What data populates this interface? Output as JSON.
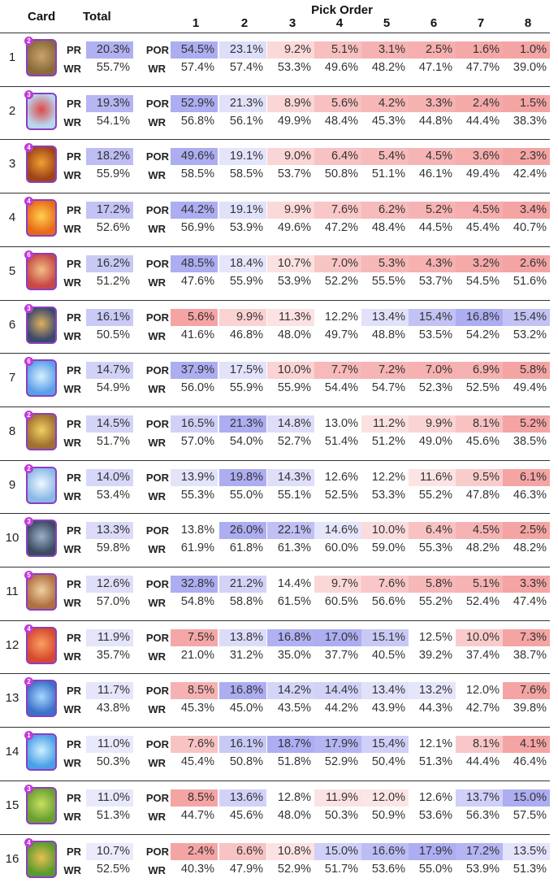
{
  "header": {
    "card": "Card",
    "total": "Total",
    "pick_order": "Pick Order",
    "columns": [
      "1",
      "2",
      "3",
      "4",
      "5",
      "6",
      "7",
      "8"
    ]
  },
  "labels": {
    "pr": "PR",
    "wr": "WR",
    "por": "POR"
  },
  "colors": {
    "high": "#7b7bea",
    "low": "#ec5a5a",
    "frame": "#8a3fc0"
  },
  "chart_data": {
    "type": "table",
    "columns": [
      "Card",
      "Total",
      "1",
      "2",
      "3",
      "4",
      "5",
      "6",
      "7",
      "8"
    ],
    "rows": [
      {
        "rank": "1",
        "icon": "battle-ram-card-icon",
        "level": "2",
        "pr": "20.3%",
        "wr": "55.7%",
        "por": [
          "54.5%",
          "23.1%",
          "9.2%",
          "5.1%",
          "3.1%",
          "2.5%",
          "1.6%",
          "1.0%"
        ],
        "por_wr": [
          "57.4%",
          "57.4%",
          "53.3%",
          "49.6%",
          "48.2%",
          "47.1%",
          "47.7%",
          "39.0%"
        ]
      },
      {
        "rank": "2",
        "icon": "arrows-card-icon",
        "level": "3",
        "pr": "19.3%",
        "wr": "54.1%",
        "por": [
          "52.9%",
          "21.3%",
          "8.9%",
          "5.6%",
          "4.2%",
          "3.3%",
          "2.4%",
          "1.5%"
        ],
        "por_wr": [
          "56.8%",
          "56.1%",
          "49.9%",
          "48.4%",
          "45.3%",
          "44.8%",
          "44.4%",
          "38.3%"
        ]
      },
      {
        "rank": "3",
        "icon": "inferno-tower-card-icon",
        "level": "4",
        "pr": "18.2%",
        "wr": "55.9%",
        "por": [
          "49.6%",
          "19.1%",
          "9.0%",
          "6.4%",
          "5.4%",
          "4.5%",
          "3.6%",
          "2.3%"
        ],
        "por_wr": [
          "58.5%",
          "58.5%",
          "53.7%",
          "50.8%",
          "51.1%",
          "46.1%",
          "49.4%",
          "42.4%"
        ]
      },
      {
        "rank": "4",
        "icon": "fireball-card-icon",
        "level": "4",
        "pr": "17.2%",
        "wr": "52.6%",
        "por": [
          "44.2%",
          "19.1%",
          "9.9%",
          "7.6%",
          "6.2%",
          "5.2%",
          "4.5%",
          "3.4%"
        ],
        "por_wr": [
          "56.9%",
          "53.9%",
          "49.6%",
          "47.2%",
          "48.4%",
          "44.5%",
          "45.4%",
          "40.7%"
        ]
      },
      {
        "rank": "5",
        "icon": "royal-recruits-card-icon",
        "level": "6",
        "pr": "16.2%",
        "wr": "51.2%",
        "por": [
          "48.5%",
          "18.4%",
          "10.7%",
          "7.0%",
          "5.3%",
          "4.3%",
          "3.2%",
          "2.6%"
        ],
        "por_wr": [
          "47.6%",
          "55.9%",
          "53.9%",
          "52.2%",
          "55.5%",
          "53.7%",
          "54.5%",
          "51.6%"
        ]
      },
      {
        "rank": "6",
        "icon": "miner-card-icon",
        "level": "3",
        "pr": "16.1%",
        "wr": "50.5%",
        "por": [
          "5.6%",
          "9.9%",
          "11.3%",
          "12.2%",
          "13.4%",
          "15.4%",
          "16.8%",
          "15.4%"
        ],
        "por_wr": [
          "41.6%",
          "46.8%",
          "48.0%",
          "49.7%",
          "48.8%",
          "53.5%",
          "54.2%",
          "53.2%"
        ]
      },
      {
        "rank": "7",
        "icon": "freeze-card-icon",
        "level": "6",
        "pr": "14.7%",
        "wr": "54.9%",
        "por": [
          "37.9%",
          "17.5%",
          "10.0%",
          "7.7%",
          "7.2%",
          "7.0%",
          "6.9%",
          "5.8%"
        ],
        "por_wr": [
          "56.0%",
          "55.9%",
          "55.9%",
          "54.4%",
          "54.7%",
          "52.3%",
          "52.5%",
          "49.4%"
        ]
      },
      {
        "rank": "8",
        "icon": "rocket-card-icon",
        "level": "2",
        "pr": "14.5%",
        "wr": "51.7%",
        "por": [
          "16.5%",
          "21.3%",
          "14.8%",
          "13.0%",
          "11.2%",
          "9.9%",
          "8.1%",
          "5.2%"
        ],
        "por_wr": [
          "57.0%",
          "54.0%",
          "52.7%",
          "51.4%",
          "51.2%",
          "49.0%",
          "45.6%",
          "38.5%"
        ]
      },
      {
        "rank": "9",
        "icon": "snowball-card-icon",
        "level": "2",
        "pr": "14.0%",
        "wr": "53.4%",
        "por": [
          "13.9%",
          "19.8%",
          "14.3%",
          "12.6%",
          "12.2%",
          "11.6%",
          "9.5%",
          "6.1%"
        ],
        "por_wr": [
          "55.3%",
          "55.0%",
          "55.1%",
          "52.5%",
          "53.3%",
          "55.2%",
          "47.8%",
          "46.3%"
        ]
      },
      {
        "rank": "10",
        "icon": "dark-knight-card-icon",
        "level": "3",
        "pr": "13.3%",
        "wr": "59.8%",
        "por": [
          "13.8%",
          "26.0%",
          "22.1%",
          "14.6%",
          "10.0%",
          "6.4%",
          "4.5%",
          "2.5%"
        ],
        "por_wr": [
          "61.9%",
          "61.8%",
          "61.3%",
          "60.0%",
          "59.0%",
          "55.3%",
          "48.2%",
          "48.2%"
        ]
      },
      {
        "rank": "11",
        "icon": "builder-card-icon",
        "level": "5",
        "pr": "12.6%",
        "wr": "57.0%",
        "por": [
          "32.8%",
          "21.2%",
          "14.4%",
          "9.7%",
          "7.6%",
          "5.8%",
          "5.1%",
          "3.3%"
        ],
        "por_wr": [
          "54.8%",
          "58.8%",
          "61.5%",
          "60.5%",
          "56.6%",
          "55.2%",
          "52.4%",
          "47.4%"
        ]
      },
      {
        "rank": "12",
        "icon": "valkyrie-card-icon",
        "level": "4",
        "pr": "11.9%",
        "wr": "35.7%",
        "por": [
          "7.5%",
          "13.8%",
          "16.8%",
          "17.0%",
          "15.1%",
          "12.5%",
          "10.0%",
          "7.3%"
        ],
        "por_wr": [
          "21.0%",
          "31.2%",
          "35.0%",
          "37.7%",
          "40.5%",
          "39.2%",
          "37.4%",
          "38.7%"
        ]
      },
      {
        "rank": "13",
        "icon": "lightning-card-icon",
        "level": "2",
        "pr": "11.7%",
        "wr": "43.8%",
        "por": [
          "8.5%",
          "16.8%",
          "14.2%",
          "14.4%",
          "13.4%",
          "13.2%",
          "12.0%",
          "7.6%"
        ],
        "por_wr": [
          "45.3%",
          "45.0%",
          "43.5%",
          "44.2%",
          "43.9%",
          "44.3%",
          "42.7%",
          "39.8%"
        ]
      },
      {
        "rank": "14",
        "icon": "ice-spirit-card-icon",
        "level": "1",
        "pr": "11.0%",
        "wr": "50.3%",
        "por": [
          "7.6%",
          "16.1%",
          "18.7%",
          "17.9%",
          "15.4%",
          "12.1%",
          "8.1%",
          "4.1%"
        ],
        "por_wr": [
          "45.4%",
          "50.8%",
          "51.8%",
          "52.9%",
          "50.4%",
          "51.3%",
          "44.4%",
          "46.4%"
        ]
      },
      {
        "rank": "15",
        "icon": "goblin-card-icon",
        "level": "3",
        "pr": "11.0%",
        "wr": "51.3%",
        "por": [
          "8.5%",
          "13.6%",
          "12.8%",
          "11.9%",
          "12.0%",
          "12.6%",
          "13.7%",
          "15.0%"
        ],
        "por_wr": [
          "44.7%",
          "45.6%",
          "48.0%",
          "50.3%",
          "50.9%",
          "53.6%",
          "56.3%",
          "57.5%"
        ]
      },
      {
        "rank": "16",
        "icon": "goblin-barrel-card-icon",
        "level": "4",
        "pr": "10.7%",
        "wr": "52.5%",
        "por": [
          "2.4%",
          "6.6%",
          "10.8%",
          "15.0%",
          "16.6%",
          "17.9%",
          "17.2%",
          "13.5%"
        ],
        "por_wr": [
          "40.3%",
          "47.9%",
          "52.9%",
          "51.7%",
          "53.6%",
          "55.0%",
          "53.9%",
          "51.3%"
        ]
      }
    ]
  }
}
